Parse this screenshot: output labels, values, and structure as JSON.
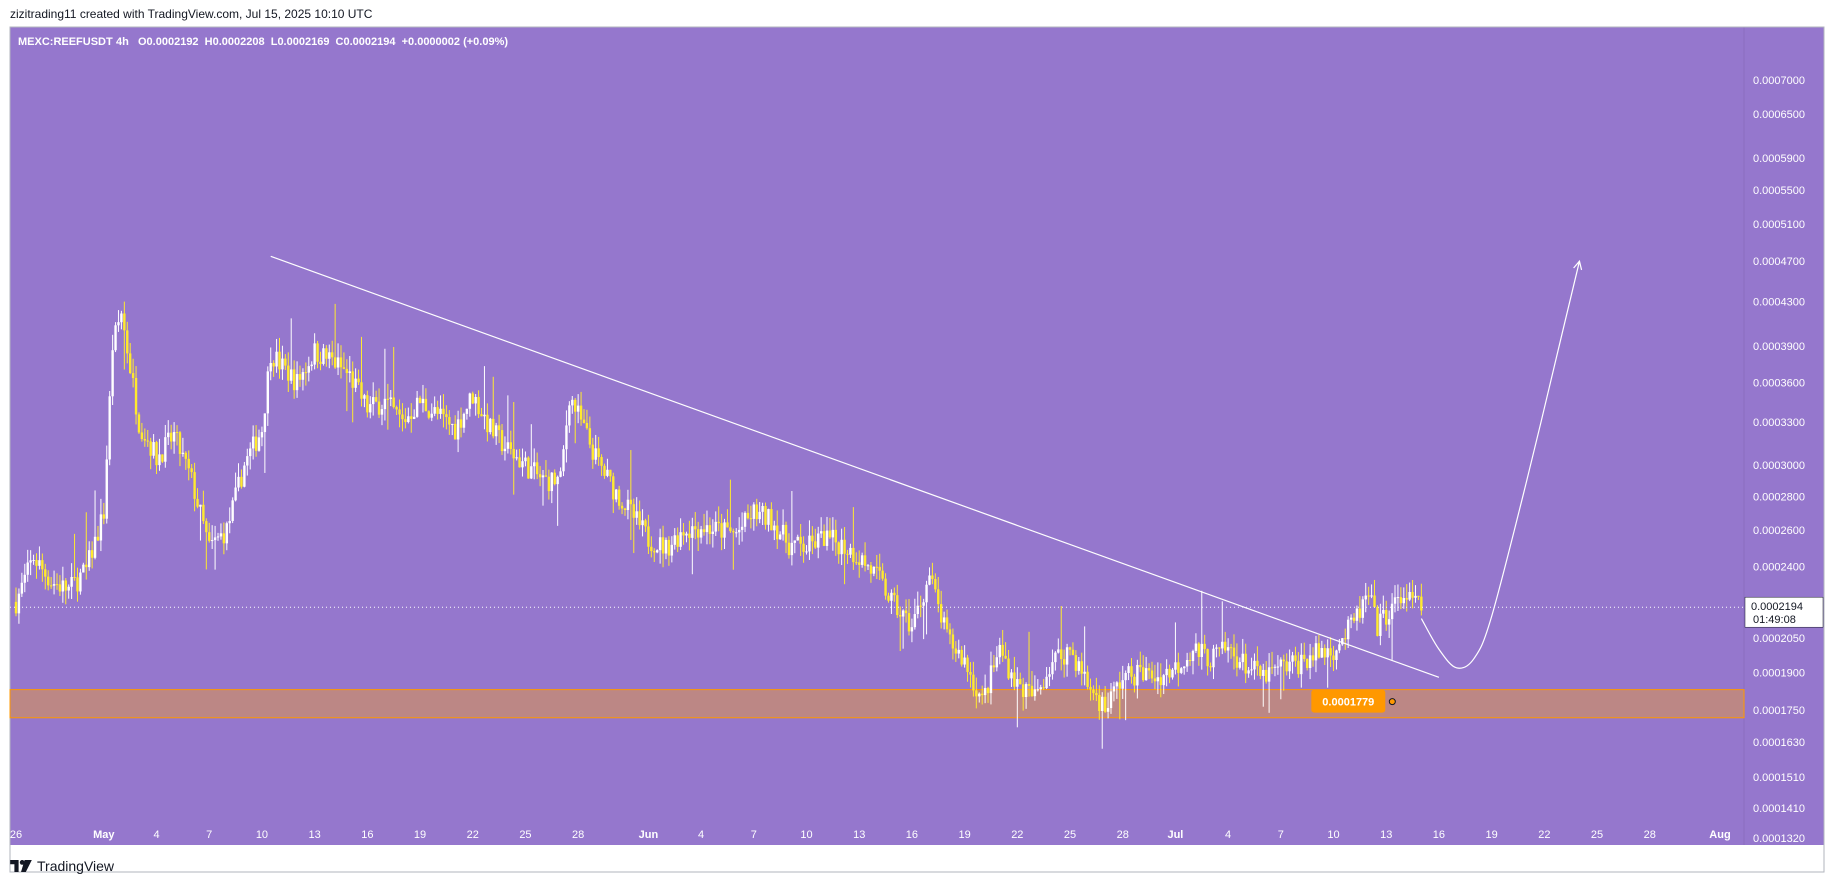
{
  "header": {
    "attribution": "zizitrading11 created with TradingView.com, Jul 15, 2025 10:10 UTC"
  },
  "legend": {
    "symbol": "MEXC:REEFUSDT",
    "interval": "4h",
    "ohlc": "O0.0002192  H0.0002208  L0.0002169  C0.0002194  +0.0000002 (+0.09%)"
  },
  "footer": {
    "brand": "TradingView"
  },
  "colors": {
    "background": "#9577cd",
    "candle": "#ffea2e",
    "zone_fill": "#bc8785",
    "zone_border": "#ff9800",
    "label_bg": "#ff9800",
    "line": "#ffffff"
  },
  "chart_data": {
    "type": "candlestick",
    "symbol": "MEXC:REEFUSDT",
    "interval": "4h",
    "y_scale": "log",
    "ylim": [
      0.000132,
      0.00074
    ],
    "y_ticks": [
      "0.0007000",
      "0.0006500",
      "0.0005900",
      "0.0005500",
      "0.0005100",
      "0.0004700",
      "0.0004300",
      "0.0003900",
      "0.0003600",
      "0.0003300",
      "0.0003000",
      "0.0002800",
      "0.0002600",
      "0.0002400",
      "0.0002050",
      "0.0001900",
      "0.0001750",
      "0.0001630",
      "0.0001510",
      "0.0001410",
      "0.0001320"
    ],
    "x_ticks": [
      "26",
      "May",
      "4",
      "7",
      "10",
      "13",
      "16",
      "19",
      "22",
      "25",
      "28",
      "Jun",
      "4",
      "7",
      "10",
      "13",
      "16",
      "19",
      "22",
      "25",
      "28",
      "Jul",
      "4",
      "7",
      "10",
      "13",
      "16",
      "19",
      "22",
      "25",
      "28",
      "Aug"
    ],
    "x_range": [
      "2025-04-26",
      "2025-08-01"
    ],
    "current_price": {
      "value": 0.0002194,
      "label": "0.0002194",
      "countdown": "01:49:08"
    },
    "support_zone": {
      "low": 0.000172,
      "high": 0.000183,
      "label": "0.0001779"
    },
    "series_points": [
      [
        "2025-04-26",
        0.000222
      ],
      [
        "2025-04-27",
        0.000245
      ],
      [
        "2025-04-28",
        0.000232
      ],
      [
        "2025-04-29",
        0.000228
      ],
      [
        "2025-04-30",
        0.000238
      ],
      [
        "2025-05-01",
        0.00027
      ],
      [
        "2025-05-01T12:00",
        0.00039
      ],
      [
        "2025-05-02",
        0.00042
      ],
      [
        "2025-05-03",
        0.00033
      ],
      [
        "2025-05-04",
        0.000305
      ],
      [
        "2025-05-05",
        0.00032
      ],
      [
        "2025-05-06",
        0.00029
      ],
      [
        "2025-05-07",
        0.00025
      ],
      [
        "2025-05-08",
        0.00026
      ],
      [
        "2025-05-09",
        0.0003
      ],
      [
        "2025-05-10",
        0.000325
      ],
      [
        "2025-05-10T12:00",
        0.000385
      ],
      [
        "2025-05-11",
        0.000375
      ],
      [
        "2025-05-12",
        0.00036
      ],
      [
        "2025-05-13",
        0.000385
      ],
      [
        "2025-05-14",
        0.000378
      ],
      [
        "2025-05-15",
        0.000365
      ],
      [
        "2025-05-16",
        0.00034
      ],
      [
        "2025-05-17",
        0.000345
      ],
      [
        "2025-05-18",
        0.00033
      ],
      [
        "2025-05-19",
        0.000345
      ],
      [
        "2025-05-20",
        0.000335
      ],
      [
        "2025-05-21",
        0.000325
      ],
      [
        "2025-05-22",
        0.00035
      ],
      [
        "2025-05-23",
        0.000325
      ],
      [
        "2025-05-24",
        0.00031
      ],
      [
        "2025-05-25",
        0.0003
      ],
      [
        "2025-05-26",
        0.00029
      ],
      [
        "2025-05-27",
        0.00029
      ],
      [
        "2025-05-27T12:00",
        0.00035
      ],
      [
        "2025-05-28",
        0.000335
      ],
      [
        "2025-05-29",
        0.000305
      ],
      [
        "2025-05-30",
        0.000285
      ],
      [
        "2025-05-31",
        0.00027
      ],
      [
        "2025-06-01",
        0.000255
      ],
      [
        "2025-06-02",
        0.00025
      ],
      [
        "2025-06-03",
        0.00026
      ],
      [
        "2025-06-04",
        0.000262
      ],
      [
        "2025-06-05",
        0.00026
      ],
      [
        "2025-06-06",
        0.000258
      ],
      [
        "2025-06-07",
        0.00027
      ],
      [
        "2025-06-08",
        0.000266
      ],
      [
        "2025-06-09",
        0.000252
      ],
      [
        "2025-06-10",
        0.00025
      ],
      [
        "2025-06-11",
        0.000256
      ],
      [
        "2025-06-12",
        0.000252
      ],
      [
        "2025-06-13",
        0.000245
      ],
      [
        "2025-06-14",
        0.000235
      ],
      [
        "2025-06-15",
        0.00022
      ],
      [
        "2025-06-16",
        0.00021
      ],
      [
        "2025-06-17",
        0.000235
      ],
      [
        "2025-06-18",
        0.000205
      ],
      [
        "2025-06-19",
        0.000195
      ],
      [
        "2025-06-20",
        0.000178
      ],
      [
        "2025-06-21",
        0.0002
      ],
      [
        "2025-06-22",
        0.000185
      ],
      [
        "2025-06-23",
        0.00018
      ],
      [
        "2025-06-24",
        0.000195
      ],
      [
        "2025-06-25",
        0.0002
      ],
      [
        "2025-06-26",
        0.000185
      ],
      [
        "2025-06-27",
        0.000176
      ],
      [
        "2025-06-28",
        0.000188
      ],
      [
        "2025-06-29",
        0.00019
      ],
      [
        "2025-06-30",
        0.000188
      ],
      [
        "2025-07-01",
        0.000192
      ],
      [
        "2025-07-02",
        0.0002
      ],
      [
        "2025-07-03",
        0.000196
      ],
      [
        "2025-07-04",
        0.0002
      ],
      [
        "2025-07-05",
        0.000193
      ],
      [
        "2025-07-06",
        0.000188
      ],
      [
        "2025-07-07",
        0.000192
      ],
      [
        "2025-07-08",
        0.000194
      ],
      [
        "2025-07-09",
        0.000198
      ],
      [
        "2025-07-10",
        0.0002
      ],
      [
        "2025-07-11",
        0.00021
      ],
      [
        "2025-07-12",
        0.000225
      ],
      [
        "2025-07-12T12:00",
        0.00021
      ],
      [
        "2025-07-13",
        0.000216
      ],
      [
        "2025-07-14",
        0.000225
      ],
      [
        "2025-07-15",
        0.000219
      ]
    ],
    "trendline": {
      "from": [
        "2025-05-10T12:00",
        0.000475
      ],
      "to": [
        "2025-07-16",
        0.000188
      ]
    },
    "projection": {
      "points": [
        [
          "2025-07-15",
          0.000214
        ],
        [
          "2025-07-16",
          0.0002
        ],
        [
          "2025-07-17",
          0.000192
        ],
        [
          "2025-07-18",
          0.000196
        ],
        [
          "2025-07-19",
          0.000215
        ],
        [
          "2025-07-21",
          0.00029
        ],
        [
          "2025-07-23",
          0.0004
        ],
        [
          "2025-07-24",
          0.00047
        ]
      ]
    }
  }
}
